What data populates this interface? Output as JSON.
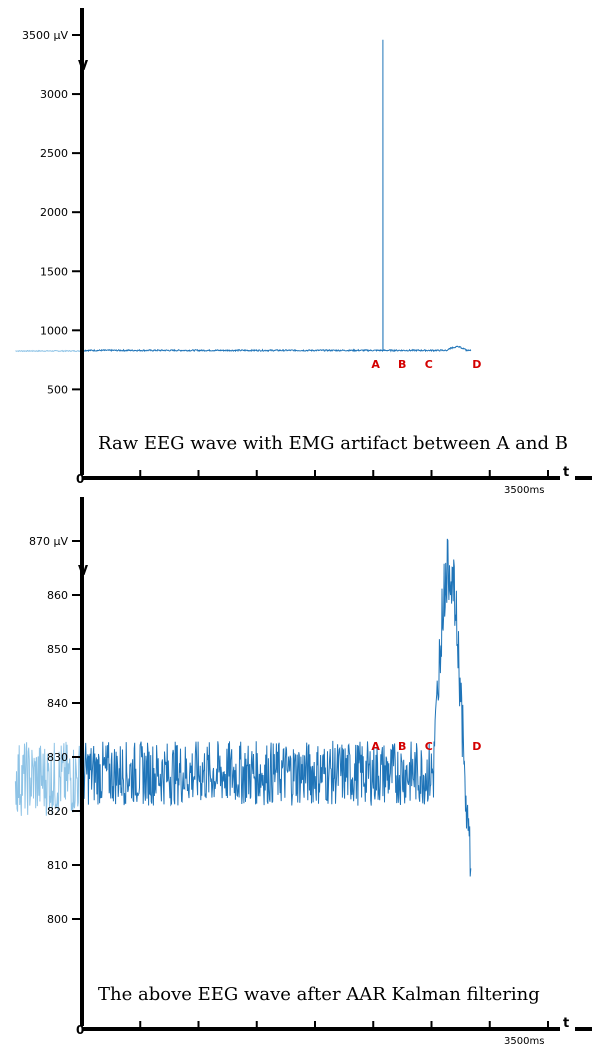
{
  "chart_data": [
    {
      "type": "line",
      "title": "Raw EEG wave with EMG artifact between A and B",
      "ylabel": "V",
      "xlabel": "t",
      "y_max_label": "3500 µV",
      "x_max_label": "3500ms",
      "origin_label": "0",
      "ylim": [
        300,
        3500
      ],
      "xlim": [
        0,
        3500
      ],
      "y_ticks": [
        "3000",
        "2500",
        "2000",
        "1500",
        "1000",
        "500"
      ],
      "x_tick_count": 8,
      "markers": [
        {
          "label": "A",
          "x": 2160
        },
        {
          "label": "B",
          "x": 2360
        },
        {
          "label": "C",
          "x": 2560
        },
        {
          "label": "D",
          "x": 2920
        }
      ],
      "series": [
        {
          "color": "#8ec3e6",
          "x_start": -500,
          "x_end": 0,
          "baseline": 825,
          "noise": 4
        },
        {
          "color": "#1f74b8",
          "x_start": 0,
          "x_end": 2920,
          "baseline": 830,
          "noise": 6,
          "spike": {
            "x": 2260,
            "peak": 3460
          },
          "bump": {
            "x_start": 2740,
            "x_end": 2920,
            "peak": 860
          }
        }
      ]
    },
    {
      "type": "line",
      "title": "The above EEG wave after AAR Kalman filtering",
      "ylabel": "V",
      "xlabel": "t",
      "y_max_label": "870 µV",
      "x_max_label": "3500ms",
      "origin_label": "0",
      "ylim": [
        790,
        870
      ],
      "xlim": [
        0,
        3500
      ],
      "y_ticks": [
        "860",
        "850",
        "840",
        "830",
        "820",
        "810",
        "800"
      ],
      "x_tick_count": 8,
      "markers": [
        {
          "label": "A",
          "x": 2160
        },
        {
          "label": "B",
          "x": 2360
        },
        {
          "label": "C",
          "x": 2560
        },
        {
          "label": "D",
          "x": 2920
        }
      ],
      "series": [
        {
          "color": "#8ec3e6",
          "x_start": -500,
          "x_end": 0,
          "baseline": 826,
          "noise": 7
        },
        {
          "color": "#1f74b8",
          "x_start": 0,
          "x_end": 2920,
          "baseline": 827,
          "noise": 6,
          "bump": {
            "x_start": 2640,
            "x_end": 2920,
            "peak": 865,
            "end": 812
          }
        }
      ]
    }
  ]
}
